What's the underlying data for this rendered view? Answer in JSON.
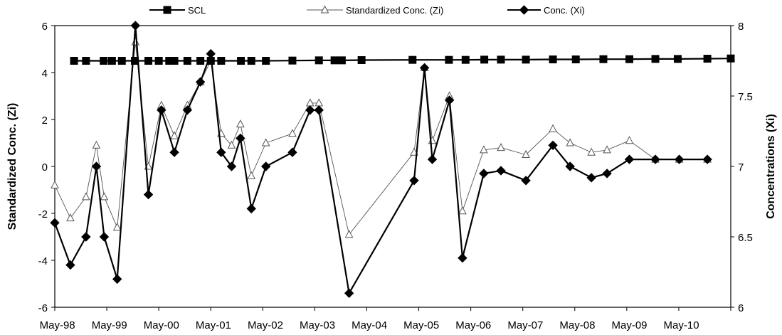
{
  "chart_data": {
    "type": "line",
    "title": "",
    "x_tick_labels": [
      "May-98",
      "May-99",
      "May-00",
      "May-01",
      "May-02",
      "May-03",
      "May-04",
      "May-05",
      "May-06",
      "May-07",
      "May-08",
      "May-09",
      "May-10"
    ],
    "y_left": {
      "label": "Standardized Conc. (Zi)",
      "range": [
        -6,
        6
      ],
      "ticks": [
        "-6",
        "-4",
        "-2",
        "0",
        "2",
        "4",
        "6"
      ]
    },
    "y_right": {
      "label": "Concentrations (Xi)",
      "range": [
        6,
        8
      ],
      "ticks": [
        "6",
        "6.5",
        "7",
        "7.5",
        "8"
      ]
    },
    "grid": false,
    "legend_position": "top",
    "series": [
      {
        "name": "SCL",
        "axis": "left",
        "marker": "square",
        "color": "#000000",
        "x": [
          1998.37,
          1998.6,
          1998.94,
          1999.1,
          1999.29,
          1999.54,
          1999.8,
          2000.0,
          2000.2,
          2000.3,
          2000.55,
          2000.8,
          2001.0,
          2001.2,
          2001.58,
          2001.78,
          2002.06,
          2002.57,
          2003.08,
          2003.38,
          2003.52,
          2003.9,
          2004.88,
          2005.58,
          2005.9,
          2006.26,
          2006.58,
          2007.06,
          2007.58,
          2008.02,
          2008.55,
          2009.05,
          2009.55,
          2009.98,
          2010.55,
          2011.0
        ],
        "y": [
          4.5,
          4.5,
          4.5,
          4.5,
          4.5,
          4.5,
          4.5,
          4.5,
          4.5,
          4.5,
          4.5,
          4.5,
          4.5,
          4.5,
          4.5,
          4.5,
          4.5,
          4.51,
          4.52,
          4.52,
          4.52,
          4.53,
          4.54,
          4.54,
          4.54,
          4.55,
          4.55,
          4.55,
          4.56,
          4.56,
          4.57,
          4.57,
          4.58,
          4.58,
          4.59,
          4.6
        ]
      },
      {
        "name": "Standardized Conc. (Zi)",
        "axis": "left",
        "marker": "triangle",
        "color": "#555555",
        "x": [
          1998.0,
          1998.3,
          1998.6,
          1998.8,
          1998.95,
          1999.2,
          1999.55,
          1999.8,
          2000.05,
          2000.3,
          2000.55,
          2000.8,
          2001.0,
          2001.2,
          2001.4,
          2001.57,
          2001.78,
          2002.06,
          2002.57,
          2002.91,
          2003.08,
          2003.66,
          2004.91,
          2005.11,
          2005.26,
          2005.59,
          2005.84,
          2006.25,
          2006.58,
          2007.06,
          2007.58,
          2007.91,
          2008.32,
          2008.62,
          2009.05,
          2009.55,
          2010.01,
          2010.55
        ],
        "y": [
          -0.8,
          -2.2,
          -1.3,
          0.9,
          -1.3,
          -2.6,
          5.3,
          0.0,
          2.6,
          1.3,
          2.6,
          3.6,
          4.5,
          1.4,
          0.9,
          1.8,
          -0.4,
          1.0,
          1.4,
          2.7,
          2.7,
          -2.9,
          0.6,
          4.2,
          1.1,
          3.0,
          -1.9,
          0.7,
          0.8,
          0.5,
          1.6,
          1.0,
          0.6,
          0.7,
          1.1,
          0.3,
          0.3,
          0.3
        ]
      },
      {
        "name": "Conc. (Xi)",
        "axis": "right",
        "marker": "diamond",
        "color": "#000000",
        "x": [
          1998.0,
          1998.3,
          1998.6,
          1998.8,
          1998.95,
          1999.2,
          1999.55,
          1999.8,
          2000.05,
          2000.3,
          2000.55,
          2000.8,
          2001.0,
          2001.2,
          2001.4,
          2001.57,
          2001.78,
          2002.06,
          2002.57,
          2002.91,
          2003.08,
          2003.66,
          2004.91,
          2005.11,
          2005.26,
          2005.59,
          2005.84,
          2006.25,
          2006.58,
          2007.06,
          2007.58,
          2007.91,
          2008.32,
          2008.62,
          2009.05,
          2009.55,
          2010.01,
          2010.55
        ],
        "y": [
          6.6,
          6.3,
          6.5,
          7.0,
          6.5,
          6.2,
          8.0,
          6.8,
          7.4,
          7.1,
          7.4,
          7.6,
          7.8,
          7.1,
          7.0,
          7.2,
          6.7,
          7.0,
          7.1,
          7.4,
          7.4,
          6.1,
          6.9,
          7.7,
          7.05,
          7.47,
          6.35,
          6.95,
          6.97,
          6.9,
          7.15,
          7.0,
          6.92,
          6.95,
          7.05,
          7.05,
          7.05,
          7.05
        ]
      }
    ]
  }
}
